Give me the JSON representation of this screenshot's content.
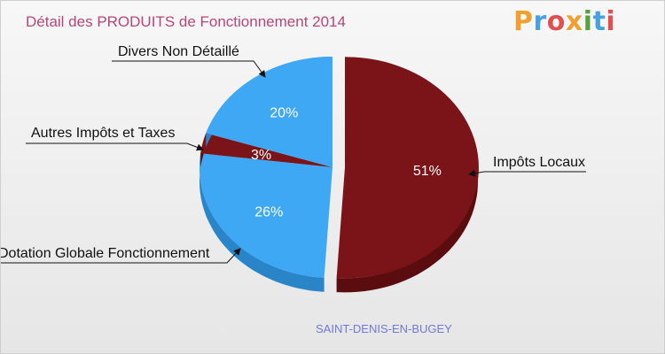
{
  "title": "Détail des PRODUITS de Fonctionnement 2014",
  "logo": {
    "letters": [
      "P",
      "r",
      "o",
      "x",
      "i",
      "t",
      "i"
    ],
    "colors": [
      "#f0a030",
      "#4aa0e0",
      "#e05050",
      "#f0a030",
      "#5aa040",
      "#4aa0e0",
      "#e05050"
    ]
  },
  "location": "SAINT-DENIS-EN-BUGEY",
  "chart_data": {
    "type": "pie",
    "title": "Détail des PRODUITS de Fonctionnement 2014",
    "slices": [
      {
        "label": "Impôts Locaux",
        "percent_label": "51%",
        "value": 51,
        "color": "#7a1418",
        "side": "#5a0c0e",
        "exploded": true
      },
      {
        "label": "Dotation Globale Fonctionnement",
        "percent_label": "26%",
        "value": 26,
        "color": "#3ea8f4",
        "side": "#2a84c8",
        "exploded": false
      },
      {
        "label": "Autres Impôts et Taxes",
        "percent_label": "3%",
        "value": 3,
        "color": "#7a1418",
        "side": "#5a0c0e",
        "exploded": false
      },
      {
        "label": "Divers Non Détaillé",
        "percent_label": "20%",
        "value": 20,
        "color": "#3ea8f4",
        "side": "#2a84c8",
        "exploded": false
      }
    ]
  }
}
